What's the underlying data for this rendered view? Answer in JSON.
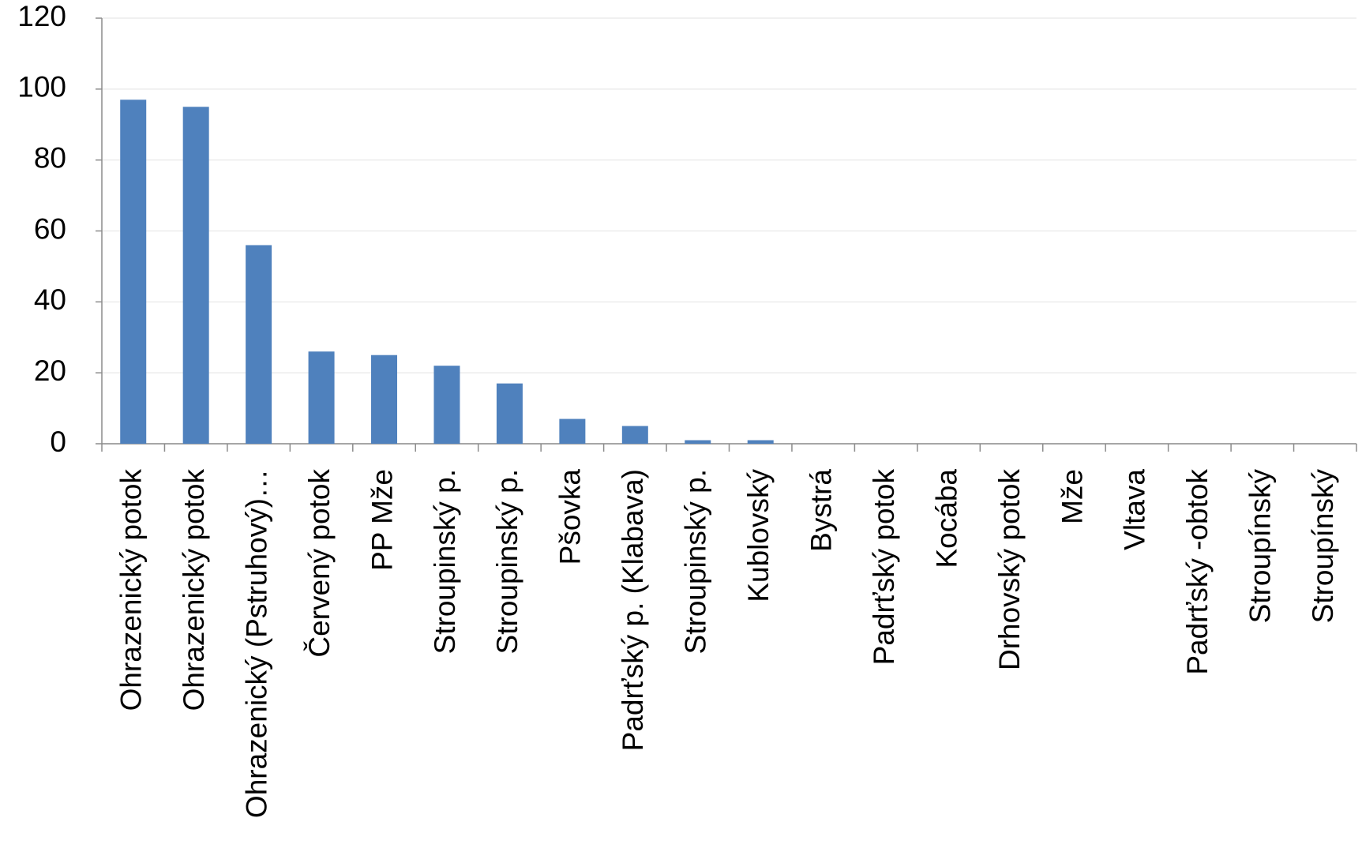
{
  "chart_data": {
    "type": "bar",
    "categories": [
      "Ohrazenický potok",
      "Ohrazenický potok",
      "Ohrazenický (Pstruhový)…",
      "Červený potok",
      "PP Mže",
      "Stroupinský p.",
      "Stroupinský p.",
      "Pšovka",
      "Padrťský p. (Klabava)",
      "Stroupinský p.",
      "Kublovský",
      "Bystrá",
      "Padrťský potok",
      "Kocába",
      "Drhovský potok",
      "Mže",
      "Vltava",
      "Padrťský -obtok",
      "Stroupínský",
      "Stroupínský"
    ],
    "values": [
      97,
      95,
      56,
      26,
      25,
      22,
      17,
      7,
      5,
      1,
      1,
      0,
      0,
      0,
      0,
      0,
      0,
      0,
      0,
      0
    ],
    "color": "#4f81bd",
    "ylim": [
      0,
      120
    ],
    "yticks": [
      0,
      20,
      40,
      60,
      80,
      100,
      120
    ],
    "grid": true
  }
}
